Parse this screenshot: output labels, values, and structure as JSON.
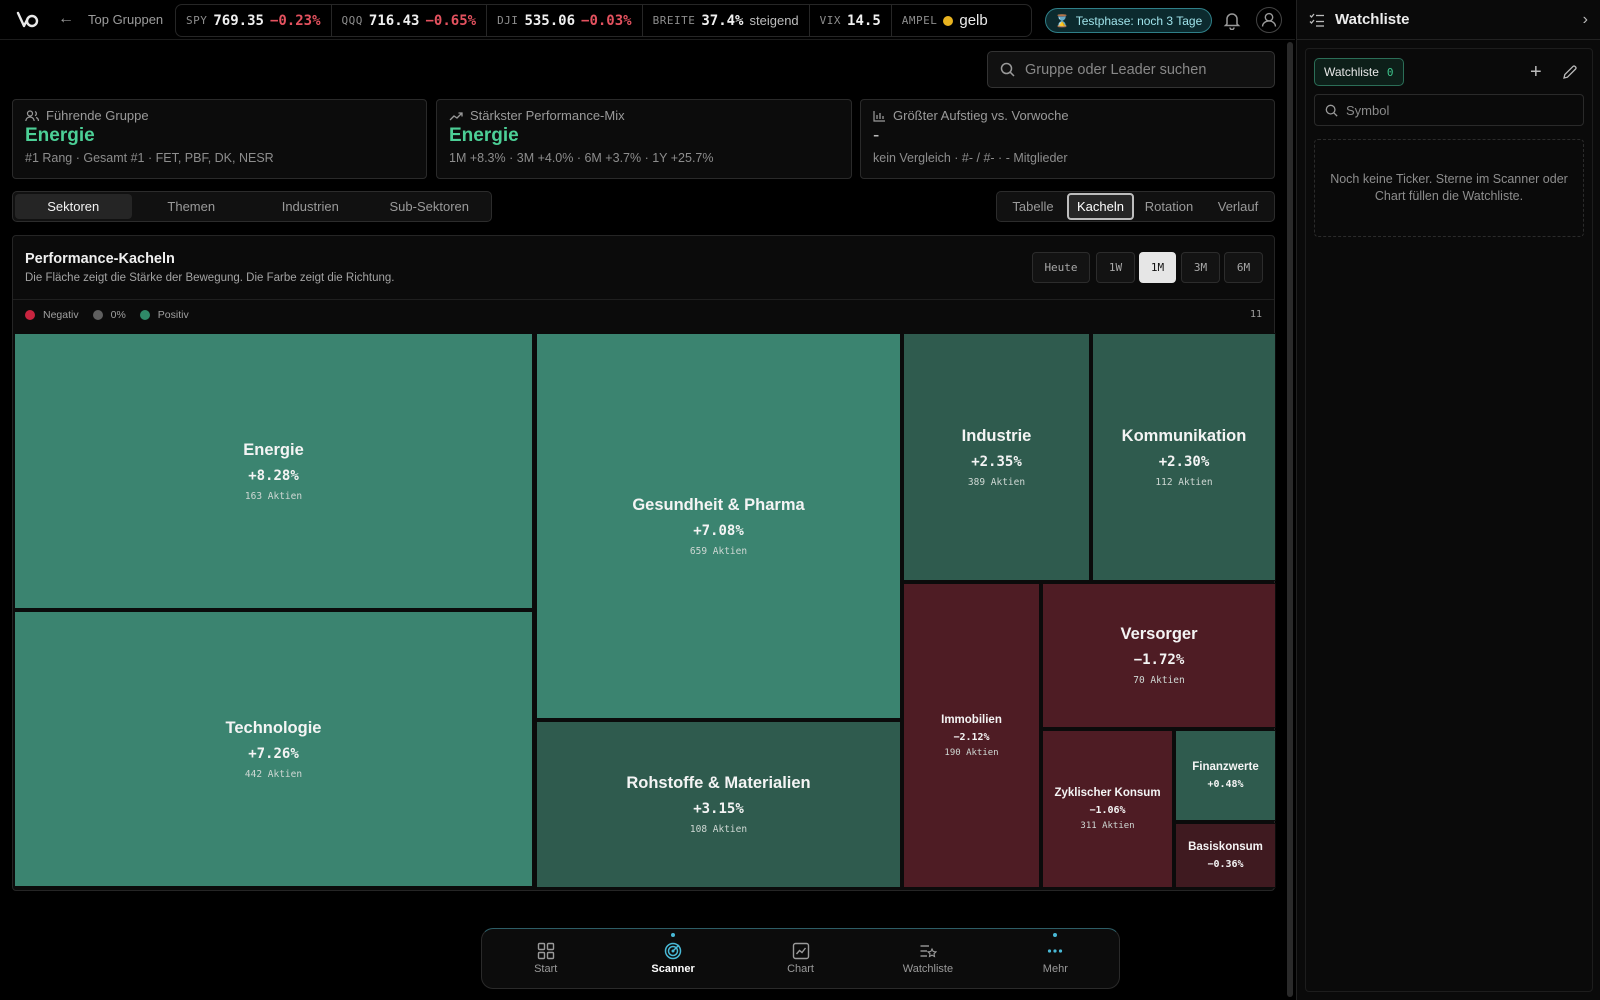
{
  "header": {
    "back_icon": "arrow-left-icon",
    "breadcrumb": "Top Gruppen",
    "tickers": [
      {
        "sym": "SPY",
        "val": "769.35",
        "chg": "−0.23%"
      },
      {
        "sym": "QQQ",
        "val": "716.43",
        "chg": "−0.65%"
      },
      {
        "sym": "DJI",
        "val": "535.06",
        "chg": "−0.03%"
      }
    ],
    "breite": {
      "sym": "BREITE",
      "val": "37.4%",
      "word": "steigend"
    },
    "vix": {
      "sym": "VIX",
      "val": "14.5"
    },
    "ampel": {
      "sym": "AMPEL",
      "val": "gelb",
      "color": "#e8b320"
    },
    "trial": "Testphase: noch 3 Tage"
  },
  "search": {
    "placeholder": "Gruppe oder Leader suchen"
  },
  "cards": {
    "leading": {
      "label": "Führende Gruppe",
      "value": "Energie",
      "sub": "#1 Rang · Gesamt #1 · FET, PBF, DK, NESR"
    },
    "mix": {
      "label": "Stärkster Performance-Mix",
      "value": "Energie",
      "sub": "1M +8.3% · 3M +4.0% · 6M +3.7% · 1Y +25.7%"
    },
    "rise": {
      "label": "Größter Aufstieg vs. Vorwoche",
      "value": "-",
      "sub": "kein Vergleich · #- / #- · - Mitglieder"
    }
  },
  "tabs": [
    "Sektoren",
    "Themen",
    "Industrien",
    "Sub-Sektoren"
  ],
  "views": [
    "Tabelle",
    "Kacheln",
    "Rotation",
    "Verlauf"
  ],
  "panel": {
    "title": "Performance-Kacheln",
    "subtitle": "Die Fläche zeigt die Stärke der Bewegung. Die Farbe zeigt die Richtung.",
    "timeframes": [
      "Heute",
      "1W",
      "1M",
      "3M",
      "6M"
    ],
    "active_timeframe": "1M",
    "legend": [
      {
        "label": "Negativ",
        "color": "#c8243f"
      },
      {
        "label": "0%",
        "color": "#5f5f5f"
      },
      {
        "label": "Positiv",
        "color": "#2f8a68"
      }
    ],
    "count": "11"
  },
  "tiles": [
    {
      "name": "Energie",
      "pct": "+8.28%",
      "count": "163 Aktien"
    },
    {
      "name": "Technologie",
      "pct": "+7.26%",
      "count": "442 Aktien"
    },
    {
      "name": "Gesundheit & Pharma",
      "pct": "+7.08%",
      "count": "659 Aktien"
    },
    {
      "name": "Rohstoffe & Materialien",
      "pct": "+3.15%",
      "count": "108 Aktien"
    },
    {
      "name": "Industrie",
      "pct": "+2.35%",
      "count": "389 Aktien"
    },
    {
      "name": "Kommunikation",
      "pct": "+2.30%",
      "count": "112 Aktien"
    },
    {
      "name": "Immobilien",
      "pct": "−2.12%",
      "count": "190 Aktien"
    },
    {
      "name": "Versorger",
      "pct": "−1.72%",
      "count": "70 Aktien"
    },
    {
      "name": "Zyklischer Konsum",
      "pct": "−1.06%",
      "count": "311 Aktien"
    },
    {
      "name": "Finanzwerte",
      "pct": "+0.48%",
      "count": ""
    },
    {
      "name": "Basiskonsum",
      "pct": "−0.36%",
      "count": ""
    }
  ],
  "bottom_nav": [
    {
      "label": "Start",
      "icon": "grid-icon"
    },
    {
      "label": "Scanner",
      "icon": "radar-icon"
    },
    {
      "label": "Chart",
      "icon": "chart-icon"
    },
    {
      "label": "Watchliste",
      "icon": "list-star-icon"
    },
    {
      "label": "Mehr",
      "icon": "dots-icon"
    }
  ],
  "watchlist": {
    "title": "Watchliste",
    "chip": "Watchliste",
    "chip_count": "0",
    "placeholder": "Symbol",
    "empty": "Noch keine Ticker. Sterne im Scanner oder Chart füllen die Watchliste."
  }
}
